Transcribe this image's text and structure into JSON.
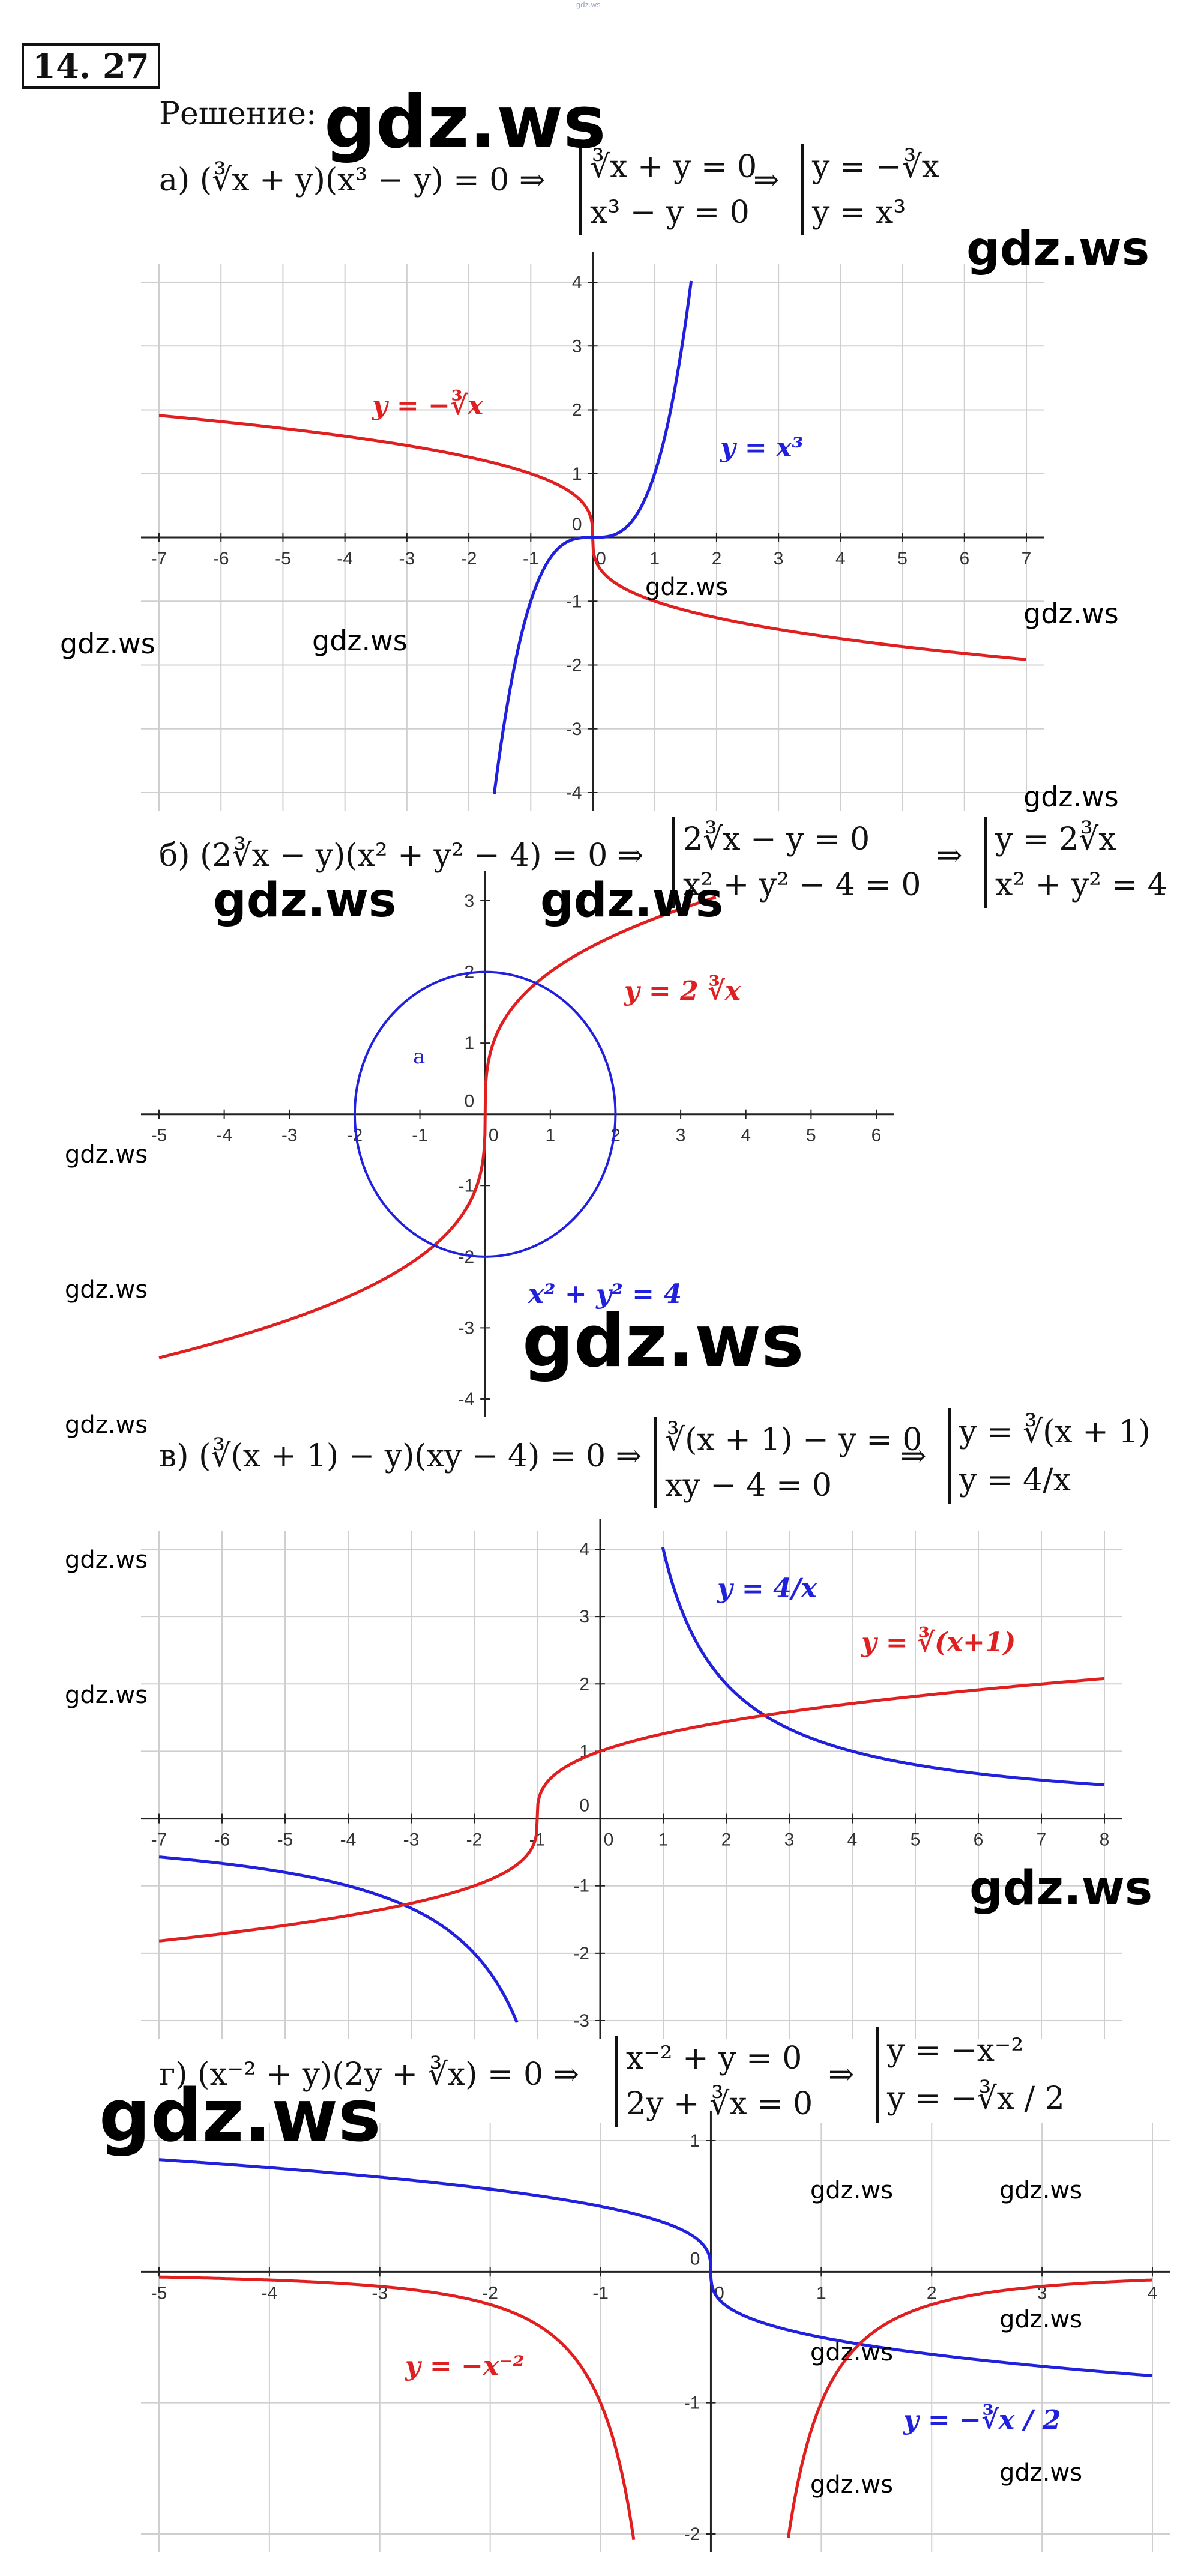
{
  "header": {
    "site": "gdz.ws"
  },
  "problem": {
    "number": "14. 27",
    "solution_label": "Решение:"
  },
  "parts": [
    {
      "id": "a",
      "letter": "а)",
      "equation": "(∛x + y)(x³ − y) = 0 ⇒",
      "system1": [
        "∛x + y = 0",
        "x³ − y = 0"
      ],
      "arrow": "⇒",
      "system2": [
        "y = −∛x",
        "y = x³"
      ],
      "chart_data": {
        "type": "line",
        "xlim": [
          -7,
          7
        ],
        "ylim": [
          -4,
          4
        ],
        "xticks": [
          -7,
          -6,
          -5,
          -4,
          -3,
          -2,
          -1,
          0,
          1,
          2,
          3,
          4,
          5,
          6,
          7
        ],
        "yticks": [
          -4,
          -3,
          -2,
          -1,
          0,
          1,
          2,
          3,
          4
        ],
        "grid": true,
        "series": [
          {
            "name": "y = −∛x",
            "color": "#e02020",
            "fn": "-cbrt(x)"
          },
          {
            "name": "y = x³",
            "color": "#2020dd",
            "fn": "x^3"
          }
        ]
      }
    },
    {
      "id": "b",
      "letter": "б)",
      "equation": "(2∛x − y)(x² + y² − 4) = 0 ⇒",
      "system1": [
        "2∛x − y = 0",
        "x² + y² − 4 = 0"
      ],
      "arrow": "⇒",
      "system2": [
        "y = 2∛x",
        "x² + y² = 4"
      ],
      "chart_data": {
        "type": "line",
        "xlim": [
          -5,
          6
        ],
        "ylim": [
          -4,
          3
        ],
        "xticks": [
          -5,
          -4,
          -3,
          -2,
          -1,
          0,
          1,
          2,
          3,
          4,
          5,
          6
        ],
        "yticks": [
          -4,
          -3,
          -2,
          -1,
          0,
          1,
          2,
          3
        ],
        "grid": false,
        "point_label": "a",
        "series": [
          {
            "name": "y = 2 ∛x",
            "color": "#e02020",
            "fn": "2*cbrt(x)"
          },
          {
            "name": "x² + y² = 4",
            "color": "#2020dd",
            "fn": "circle r=2"
          }
        ]
      }
    },
    {
      "id": "v",
      "letter": "в)",
      "equation": "(∛(x + 1) − y)(xy − 4) = 0 ⇒",
      "system1": [
        "∛(x + 1) − y = 0",
        "xy − 4 = 0"
      ],
      "arrow": "⇒",
      "system2": [
        "y = ∛(x + 1)",
        "y = 4/x"
      ],
      "chart_data": {
        "type": "line",
        "xlim": [
          -7,
          8
        ],
        "ylim": [
          -3,
          4
        ],
        "xticks": [
          -7,
          -6,
          -5,
          -4,
          -3,
          -2,
          -1,
          0,
          1,
          2,
          3,
          4,
          5,
          6,
          7,
          8
        ],
        "yticks": [
          -3,
          -2,
          -1,
          0,
          1,
          2,
          3,
          4
        ],
        "grid": true,
        "series": [
          {
            "name": "y = 4/x",
            "color": "#2020dd",
            "fn": "4/x"
          },
          {
            "name": "y = ∛(x+1)",
            "color": "#e02020",
            "fn": "cbrt(x+1)"
          }
        ]
      }
    },
    {
      "id": "g",
      "letter": "г)",
      "equation": "(x⁻² + y)(2y + ∛x) = 0 ⇒",
      "system1": [
        "x⁻² + y = 0",
        "2y + ∛x = 0"
      ],
      "arrow": "⇒",
      "system2": [
        "y = −x⁻²",
        "y = −∛x / 2"
      ],
      "chart_data": {
        "type": "line",
        "xlim": [
          -5,
          4
        ],
        "ylim": [
          -2,
          1
        ],
        "xticks": [
          -5,
          -4,
          -3,
          -2,
          -1,
          0,
          1,
          2,
          3,
          4
        ],
        "yticks": [
          -2,
          -1,
          0,
          1
        ],
        "grid": true,
        "series": [
          {
            "name": "y = −∛x / 2",
            "color": "#2020dd",
            "fn": "-cbrt(x)/2"
          },
          {
            "name": "y = −x⁻²",
            "color": "#e02020",
            "fn": "-1/x^2"
          }
        ]
      }
    }
  ],
  "watermarks": [
    "gdz.ws"
  ]
}
